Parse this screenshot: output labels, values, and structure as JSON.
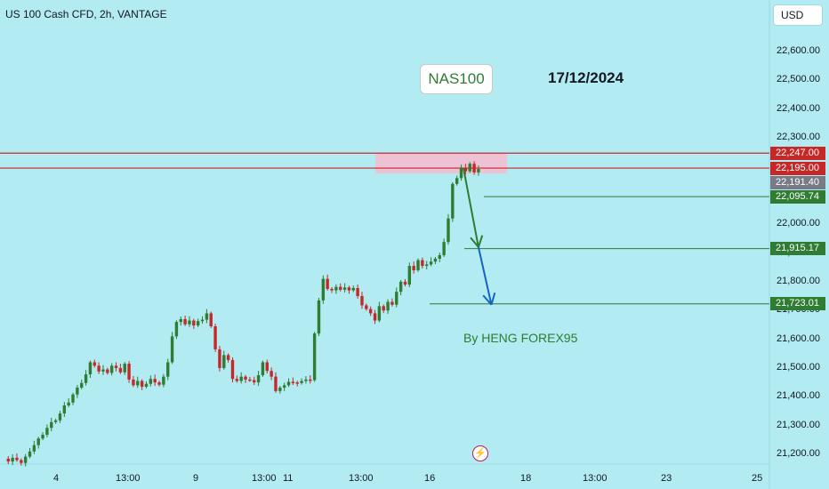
{
  "header": {
    "symbol": "US 100 Cash CFD, 2h, VANTAGE"
  },
  "currency": "USD",
  "annotations": {
    "title": "NAS100",
    "date": "17/12/2024",
    "author": "By HENG FOREX95"
  },
  "colors": {
    "background": "#b2ebf2",
    "up": "#2e7d32",
    "down": "#c62828",
    "zone": "#f8bbd0",
    "projection_blue": "#1565c0"
  },
  "icons": {
    "event": "lightning-bolt-icon"
  },
  "chart_data": {
    "type": "candlestick",
    "ylim": [
      21160,
      22760
    ],
    "y_ticks": [
      "22,600.00",
      "22,500.00",
      "22,400.00",
      "22,300.00",
      "22,000.00",
      "21,900.00",
      "21,800.00",
      "21,700.00",
      "21,600.00",
      "21,500.00",
      "21,400.00",
      "21,300.00",
      "21,200.00"
    ],
    "x_ticks": [
      "4",
      "13:00",
      "9",
      "13:00",
      "11",
      "13:00",
      "16",
      "18",
      "13:00",
      "23",
      "25"
    ],
    "price_tags": [
      {
        "label": "22,247.00",
        "value": 22247,
        "color": "#c62828"
      },
      {
        "label": "22,195.00",
        "value": 22195,
        "color": "#c62828"
      },
      {
        "label": "22,191.40",
        "value": 22191.4,
        "color": "#787b86"
      },
      {
        "label": "22,095.74",
        "value": 22095.74,
        "color": "#2e7d32"
      },
      {
        "label": "21,915.17",
        "value": 21915.17,
        "color": "#2e7d32"
      },
      {
        "label": "21,723.01",
        "value": 21723.01,
        "color": "#2e7d32"
      }
    ],
    "resistance_lines": [
      22247,
      22195
    ],
    "zone": [
      22195,
      22247
    ],
    "targets": [
      22095.74,
      21915.17,
      21723.01
    ],
    "series": [
      {
        "name": "price",
        "points": [
          21185,
          21175,
          21188,
          21180,
          21170,
          21192,
          21210,
          21232,
          21255,
          21268,
          21292,
          21312,
          21318,
          21342,
          21370,
          21380,
          21408,
          21432,
          21448,
          21478,
          21520,
          21508,
          21488,
          21495,
          21483,
          21508,
          21500,
          21485,
          21515,
          21460,
          21440,
          21455,
          21435,
          21445,
          21462,
          21450,
          21442,
          21470,
          21520,
          21610,
          21660,
          21670,
          21652,
          21665,
          21648,
          21663,
          21668,
          21690,
          21645,
          21565,
          21500,
          21545,
          21528,
          21462,
          21455,
          21470,
          21460,
          21458,
          21450,
          21475,
          21520,
          21490,
          21470,
          21420,
          21432,
          21440,
          21452,
          21450,
          21448,
          21455,
          21460,
          21458,
          21620,
          21735,
          21810,
          21775,
          21770,
          21782,
          21772,
          21780,
          21770,
          21778,
          21750,
          21718,
          21705,
          21690,
          21665,
          21715,
          21700,
          21730,
          21720,
          21765,
          21800,
          21790,
          21855,
          21840,
          21875,
          21855,
          21860,
          21870,
          21880,
          21892,
          21938,
          22020,
          22140,
          22160,
          22195,
          22184,
          22210,
          22180,
          22192
        ]
      }
    ],
    "projection": [
      {
        "from": [
          106.5,
          22196
        ],
        "to": [
          110,
          21920
        ],
        "color": "green"
      },
      {
        "from": [
          110,
          21920
        ],
        "to": [
          113,
          21720
        ],
        "color": "blue"
      }
    ]
  }
}
